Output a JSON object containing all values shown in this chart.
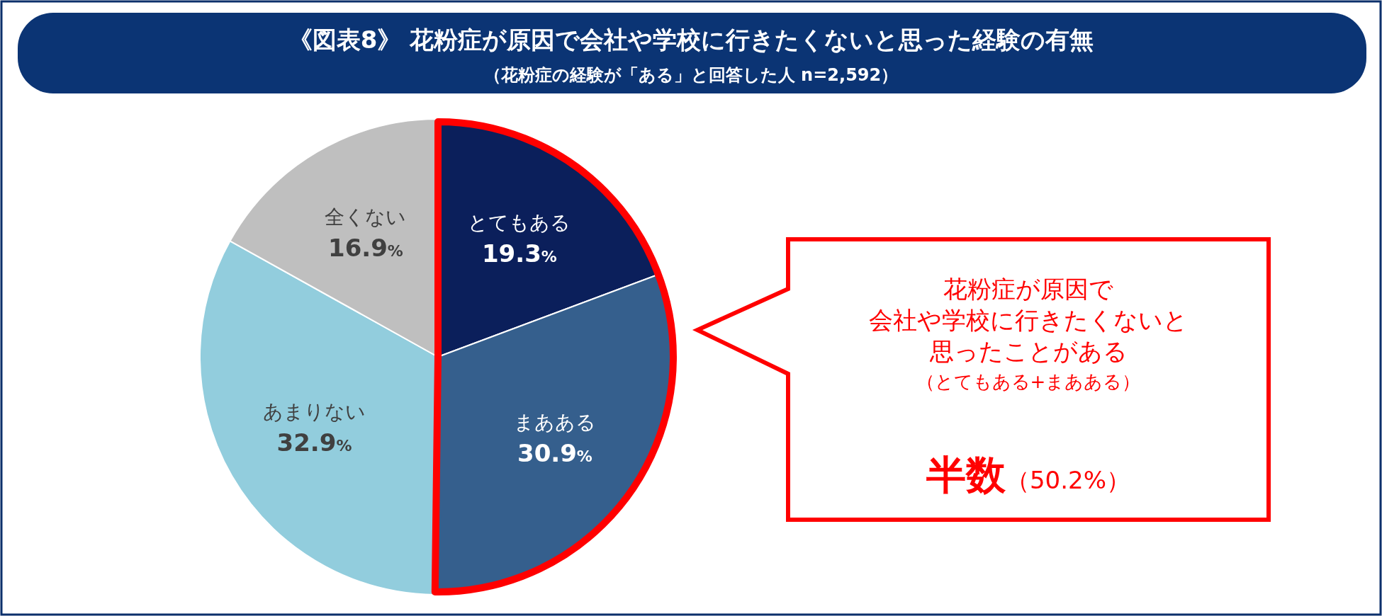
{
  "chart_data": {
    "type": "pie",
    "title": "《図表8》 花粉症が原因で会社や学校に行きたくないと思った経験の有無",
    "subtitle": "（花粉症の経験が「ある」と回答した人 n=2,592）",
    "categories": [
      "とてもある",
      "まあある",
      "あまりない",
      "全くない"
    ],
    "values": [
      19.3,
      30.9,
      32.9,
      16.9
    ],
    "value_labels": [
      "19.3%",
      "30.9%",
      "32.9%",
      "16.9%"
    ],
    "colors": [
      "#0b1f5b",
      "#355f8d",
      "#92cddd",
      "#bfbfbf"
    ],
    "annotations": [
      "花粉症が原因で",
      "会社や学校に行きたくないと",
      "思ったことがある",
      "（とてもある+まあある）",
      "半数（50.2%）"
    ]
  }
}
